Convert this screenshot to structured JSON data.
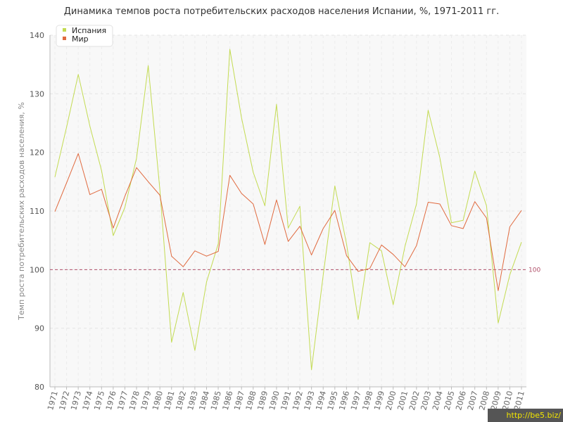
{
  "chart_data": {
    "type": "line",
    "title": "Динамика темпов роста потребительских расходов населения Испании, %, 1971-2011 гг.",
    "ylabel": "Темп роста потребительских расходов населения, %",
    "xlabel": "",
    "ylim": [
      80,
      140
    ],
    "yticks": [
      "80",
      "90",
      "100",
      "110",
      "120",
      "130",
      "140"
    ],
    "grid": true,
    "legend_position": "top-left",
    "categories": [
      "1971",
      "1972",
      "1973",
      "1974",
      "1975",
      "1976",
      "1977",
      "1978",
      "1979",
      "1980",
      "1981",
      "1982",
      "1983",
      "1984",
      "1985",
      "1986",
      "1987",
      "1988",
      "1989",
      "1990",
      "1991",
      "1992",
      "1993",
      "1994",
      "1995",
      "1996",
      "1997",
      "1998",
      "1999",
      "2000",
      "2001",
      "2002",
      "2003",
      "2004",
      "2005",
      "2006",
      "2007",
      "2008",
      "2009",
      "2010",
      "2011"
    ],
    "series": [
      {
        "name": "Испания",
        "color": "#c3db52",
        "values": [
          115.8,
          124.3,
          133.3,
          124.5,
          116.9,
          105.8,
          110.6,
          119.0,
          134.8,
          113.6,
          87.6,
          96.1,
          86.2,
          97.9,
          104.4,
          137.6,
          125.9,
          116.6,
          110.9,
          128.2,
          107.1,
          110.8,
          82.9,
          99.0,
          114.3,
          104.4,
          91.5,
          104.6,
          103.2,
          94.0,
          103.9,
          111.2,
          127.2,
          119.1,
          108.0,
          108.4,
          116.8,
          110.9,
          90.9,
          99.1,
          104.7
        ]
      },
      {
        "name": "Мир",
        "color": "#e06a3f",
        "values": [
          109.9,
          114.8,
          119.8,
          112.8,
          113.7,
          107.1,
          112.5,
          117.4,
          115.0,
          112.7,
          102.3,
          100.5,
          103.2,
          102.3,
          103.1,
          116.1,
          113.0,
          111.2,
          104.3,
          111.9,
          104.8,
          107.4,
          102.5,
          107.0,
          110.1,
          102.4,
          99.7,
          100.2,
          104.2,
          102.6,
          100.5,
          104.1,
          111.5,
          111.2,
          107.5,
          107.0,
          111.6,
          108.8,
          96.4,
          107.3,
          110.1
        ]
      }
    ],
    "reference_line": {
      "value": 100,
      "label": "100",
      "color": "#b0506a"
    }
  },
  "watermark": "http://be5.biz/"
}
